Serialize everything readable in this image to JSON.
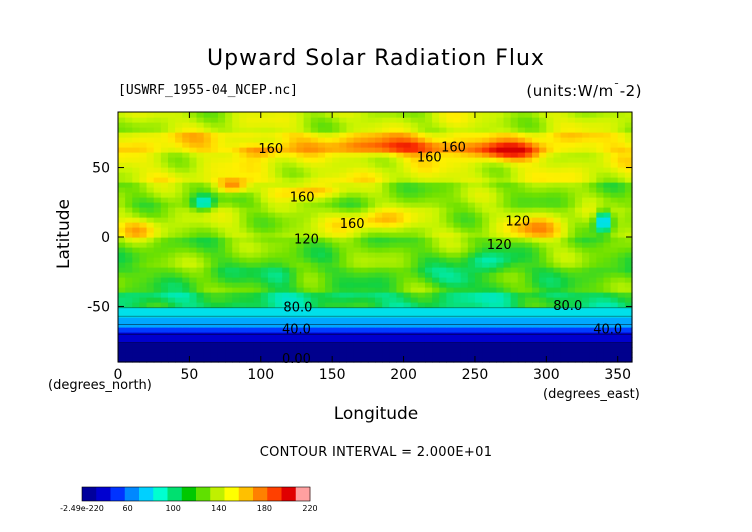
{
  "chart_data": {
    "type": "heatmap",
    "title": "Upward Solar Radiation Flux",
    "file_label": "[USWRF_1955-04_NCEP.nc]",
    "units_label": "(units:W/m^-2)",
    "xlabel": "Longitude",
    "ylabel": "Latitude",
    "x_unit": "(degrees_north)",
    "x_unit_right": "(degrees_east)",
    "xlim": [
      0,
      360
    ],
    "ylim": [
      -90,
      90
    ],
    "x_ticks": [
      0,
      50,
      100,
      150,
      200,
      250,
      300,
      350
    ],
    "y_ticks": [
      -50,
      0,
      50
    ],
    "contour_interval_text": "CONTOUR INTERVAL = 2.000E+01",
    "contour_labels": [
      {
        "text": "160",
        "lon": 107,
        "lat": 64
      },
      {
        "text": "160",
        "lon": 235,
        "lat": 65
      },
      {
        "text": "160",
        "lon": 218,
        "lat": 58
      },
      {
        "text": "160",
        "lon": 129,
        "lat": 29
      },
      {
        "text": "160",
        "lon": 164,
        "lat": 10
      },
      {
        "text": "120",
        "lon": 132,
        "lat": -1
      },
      {
        "text": "120",
        "lon": 280,
        "lat": 12
      },
      {
        "text": "120",
        "lon": 267,
        "lat": -5
      },
      {
        "text": "80.0",
        "lon": 126,
        "lat": -50
      },
      {
        "text": "80.0",
        "lon": 315,
        "lat": -49
      },
      {
        "text": "40.0",
        "lon": 125,
        "lat": -66
      },
      {
        "text": "40.0",
        "lon": 343,
        "lat": -66
      },
      {
        "text": "0.00",
        "lon": 125,
        "lat": -87
      }
    ],
    "colorbar": {
      "labels": [
        "-2.49e-220",
        "60",
        "100",
        "140",
        "180",
        "220"
      ],
      "colors": [
        "#00009c",
        "#0000d0",
        "#0033ff",
        "#0088ff",
        "#00d0ff",
        "#00ffd0",
        "#00e070",
        "#00c800",
        "#60e000",
        "#c0f000",
        "#ffff00",
        "#ffc000",
        "#ff8000",
        "#ff4000",
        "#e00000",
        "#ffa0a0"
      ]
    },
    "zones": [
      {
        "lat": [
          -90,
          -76
        ],
        "value": 5
      },
      {
        "lat": [
          -76,
          -70
        ],
        "value": 20
      },
      {
        "lat": [
          -70,
          -63
        ],
        "value": 40
      },
      {
        "lat": [
          -63,
          -57
        ],
        "value": 65
      },
      {
        "lat": [
          -57,
          -51
        ],
        "value": 85
      },
      {
        "lat": [
          -51,
          -40
        ],
        "value": 110
      },
      {
        "lat": [
          -40,
          -20
        ],
        "value": 125
      },
      {
        "lat": [
          -20,
          0
        ],
        "value": 130
      },
      {
        "lat": [
          0,
          20
        ],
        "value": 140
      },
      {
        "lat": [
          20,
          40
        ],
        "value": 135
      },
      {
        "lat": [
          40,
          60
        ],
        "value": 150
      },
      {
        "lat": [
          60,
          74
        ],
        "value": 160
      },
      {
        "lat": [
          74,
          90
        ],
        "value": 145
      }
    ]
  }
}
